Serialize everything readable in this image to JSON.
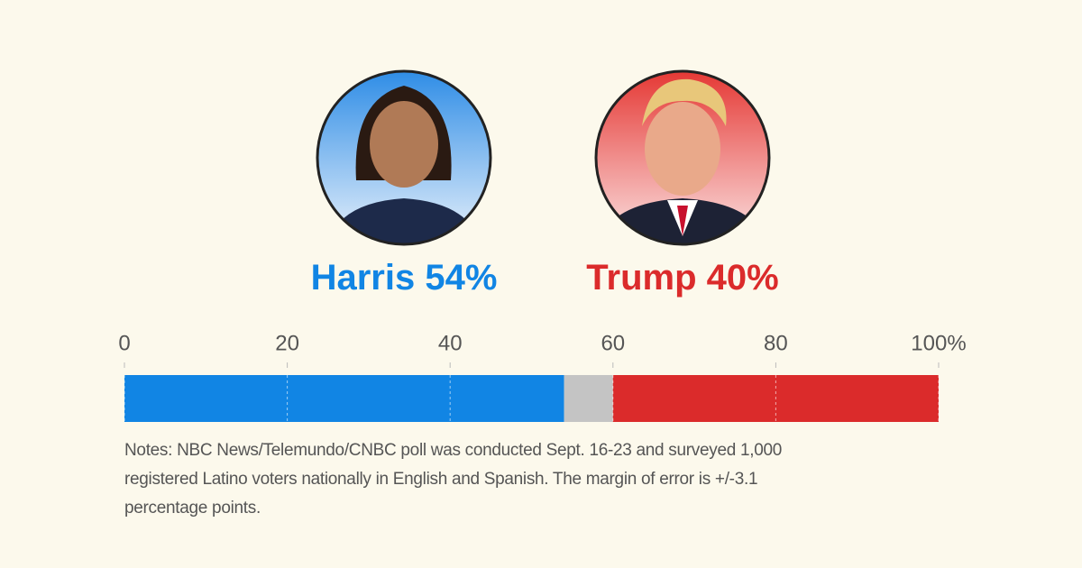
{
  "chart_data": {
    "type": "stacked-bar",
    "series": [
      {
        "name": "Harris",
        "color": "#1185e4",
        "values": [
          54
        ],
        "value_labels": [
          "54%"
        ]
      },
      {
        "name": null,
        "color": "#c4c4c4",
        "values": [
          6
        ]
      },
      {
        "name": "Trump",
        "color": "#db2b2b",
        "values": [
          40
        ],
        "value_labels": [
          "40%"
        ]
      }
    ],
    "xlim": [
      0,
      100
    ],
    "xticks": [
      0,
      20,
      40,
      60,
      80,
      {
        "value": 100,
        "label": "100%"
      }
    ],
    "grid": true,
    "notes": "Notes: NBC News/Telemundo/CNBC poll was conducted Sept. 16-23 and surveyed 1,000 registered Latino voters nationally in English and Spanish. The margin of error is +/-3.1 percentage points."
  }
}
